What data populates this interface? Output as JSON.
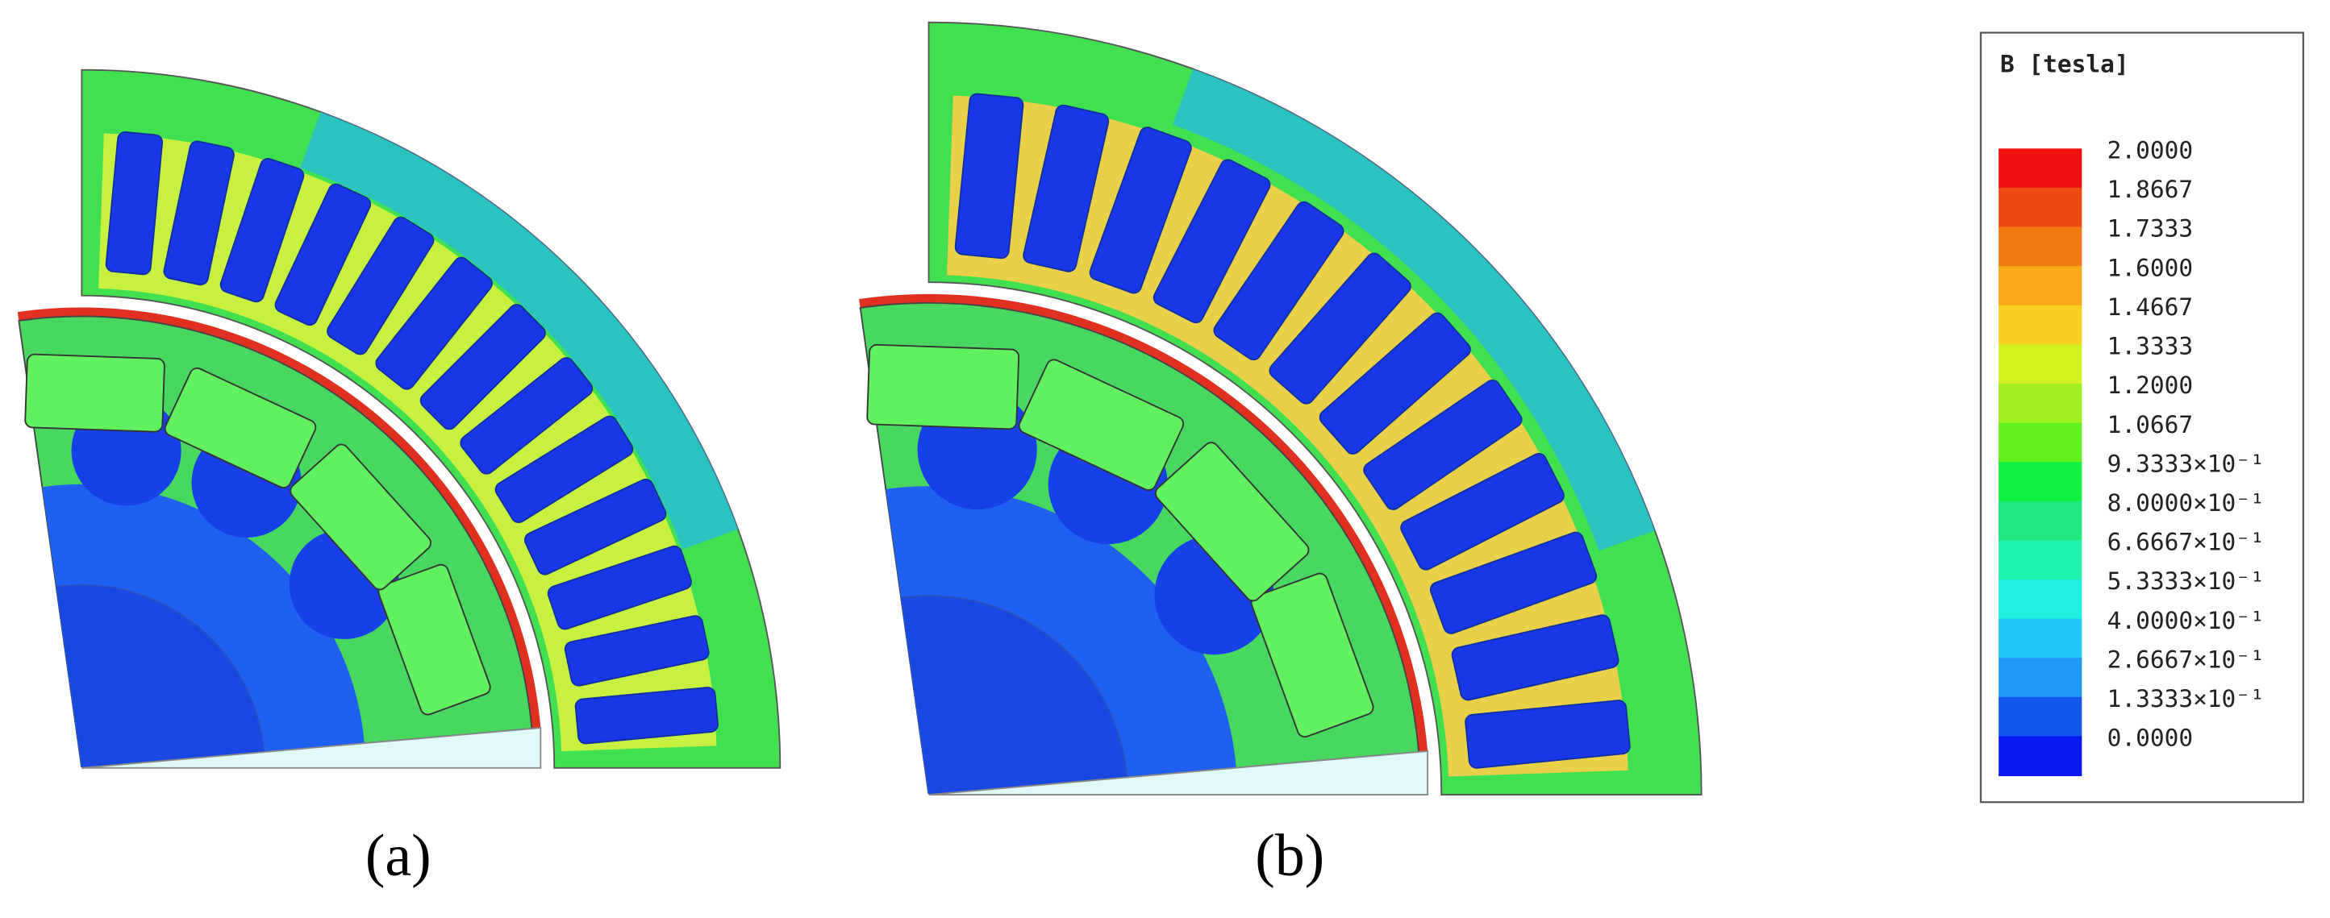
{
  "panels": [
    {
      "label": "(a)"
    },
    {
      "label": "(b)"
    }
  ],
  "legend": {
    "title": "B [tesla]",
    "entries": [
      {
        "label": "2.0000",
        "color": "#f01010"
      },
      {
        "label": "1.8667",
        "color": "#f04a10"
      },
      {
        "label": "1.7333",
        "color": "#f07a10"
      },
      {
        "label": "1.6000",
        "color": "#f8a818"
      },
      {
        "label": "1.4667",
        "color": "#f8d020"
      },
      {
        "label": "1.3333",
        "color": "#d4f020"
      },
      {
        "label": "1.2000",
        "color": "#a0f020"
      },
      {
        "label": "1.0667",
        "color": "#60f020"
      },
      {
        "label": "9.3333×10⁻¹",
        "color": "#10f040"
      },
      {
        "label": "8.0000×10⁻¹",
        "color": "#20e880"
      },
      {
        "label": "6.6667×10⁻¹",
        "color": "#20f0b0"
      },
      {
        "label": "5.3333×10⁻¹",
        "color": "#20f0e0"
      },
      {
        "label": "4.0000×10⁻¹",
        "color": "#20c8f8"
      },
      {
        "label": "2.6667×10⁻¹",
        "color": "#2098f8"
      },
      {
        "label": "1.3333×10⁻¹",
        "color": "#1058f0"
      },
      {
        "label": "0.0000",
        "color": "#0818f0"
      }
    ]
  }
}
